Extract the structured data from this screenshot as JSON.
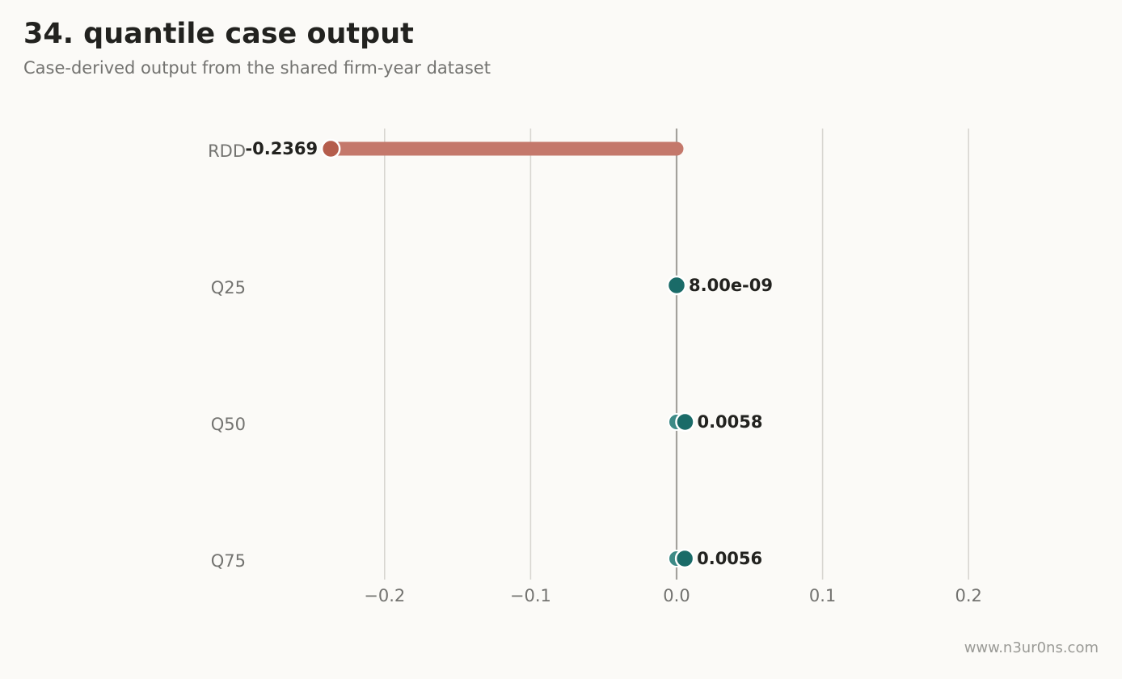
{
  "title": "34. quantile case output",
  "subtitle": "Case-derived output from the shared firm-year dataset",
  "watermark": "www.n3ur0ns.com",
  "colors": {
    "negative": "#b55d4c",
    "negative_bar": "#c4786b",
    "positive": "#1a6b68",
    "positive_start": "#3d8a86",
    "grid": "#d8d6d1",
    "zero_line": "#a3a19c"
  },
  "chart_data": {
    "type": "dumbbell",
    "categories": [
      "RDD",
      "Q25",
      "Q50",
      "Q75"
    ],
    "start_values": [
      0,
      0,
      0,
      0
    ],
    "values": [
      -0.2369,
      8e-09,
      0.0058,
      0.0056
    ],
    "data_labels": [
      "-0.2369",
      "8.00e-09",
      "0.0058",
      "0.0056"
    ],
    "xticks": [
      -0.2,
      -0.1,
      0.0,
      0.1,
      0.2
    ],
    "xtick_labels": [
      "−0.2",
      "−0.1",
      "0.0",
      "0.1",
      "0.2"
    ],
    "xlim": [
      -0.29,
      0.29
    ],
    "xlabel": "",
    "ylabel": "",
    "grid": "vertical"
  }
}
